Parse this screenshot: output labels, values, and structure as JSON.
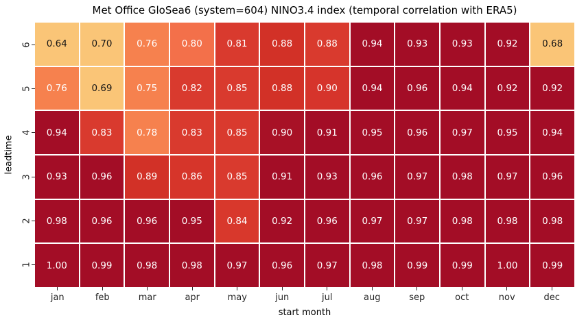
{
  "figure": {
    "background": "#ffffff"
  },
  "chart_data": {
    "type": "heatmap",
    "title": "Met Office GloSea6 (system=604) NINO3.4 index (temporal correlation with ERA5)",
    "xlabel": "start month",
    "ylabel": "leadtime",
    "x_categories": [
      "jan",
      "feb",
      "mar",
      "apr",
      "may",
      "jun",
      "jul",
      "aug",
      "sep",
      "oct",
      "nov",
      "dec"
    ],
    "y_categories": [
      "6",
      "5",
      "4",
      "3",
      "2",
      "1"
    ],
    "values": [
      [
        0.64,
        0.7,
        0.76,
        0.8,
        0.81,
        0.88,
        0.88,
        0.94,
        0.93,
        0.93,
        0.92,
        0.68
      ],
      [
        0.76,
        0.69,
        0.75,
        0.82,
        0.85,
        0.88,
        0.9,
        0.94,
        0.96,
        0.94,
        0.92,
        0.92
      ],
      [
        0.94,
        0.83,
        0.78,
        0.83,
        0.85,
        0.9,
        0.91,
        0.95,
        0.96,
        0.97,
        0.95,
        0.94
      ],
      [
        0.93,
        0.96,
        0.89,
        0.86,
        0.85,
        0.91,
        0.93,
        0.96,
        0.97,
        0.98,
        0.97,
        0.96
      ],
      [
        0.98,
        0.96,
        0.96,
        0.95,
        0.84,
        0.92,
        0.96,
        0.97,
        0.97,
        0.98,
        0.98,
        0.98
      ],
      [
        1.0,
        0.99,
        0.98,
        0.98,
        0.97,
        0.96,
        0.97,
        0.98,
        0.99,
        0.99,
        1.0,
        0.99
      ]
    ],
    "cell_colors": [
      [
        "#fac577",
        "#fac577",
        "#f6814e",
        "#f3704a",
        "#d93a2e",
        "#d23127",
        "#d93a2e",
        "#a30d26",
        "#a30d26",
        "#a30d26",
        "#a30d26",
        "#fac577"
      ],
      [
        "#f6814e",
        "#fac577",
        "#f6814e",
        "#d93a2e",
        "#d93a2e",
        "#d23127",
        "#d6342b",
        "#a30d26",
        "#a30d26",
        "#a30d26",
        "#a30d26",
        "#a30d26"
      ],
      [
        "#a30d26",
        "#d93a2e",
        "#f6814e",
        "#d93a2e",
        "#d93a2e",
        "#a81126",
        "#a30d26",
        "#a30d26",
        "#a30d26",
        "#a30d26",
        "#a30d26",
        "#a30d26"
      ],
      [
        "#a30d26",
        "#a30d26",
        "#d23127",
        "#d6352a",
        "#d93a2e",
        "#a30d26",
        "#a30d26",
        "#a30d26",
        "#a30d26",
        "#a30d26",
        "#a30d26",
        "#a30d26"
      ],
      [
        "#a30d26",
        "#a30d26",
        "#a30d26",
        "#a30d26",
        "#d8382c",
        "#a30d26",
        "#a30d26",
        "#a30d26",
        "#a30d26",
        "#a30d26",
        "#a30d26",
        "#a30d26"
      ],
      [
        "#a30d26",
        "#a30d26",
        "#a30d26",
        "#a30d26",
        "#a30d26",
        "#a30d26",
        "#a30d26",
        "#a30d26",
        "#a30d26",
        "#a30d26",
        "#a30d26",
        "#a30d26"
      ]
    ],
    "annot_text_dark": "#151515",
    "annot_text_light": "#ffffff",
    "grid_line_color": "#ffffff",
    "value_format_decimals": "2",
    "legend": "none",
    "colormap_hint": [
      "#fac577",
      "#f6814e",
      "#d93a2e",
      "#a30d26"
    ]
  }
}
